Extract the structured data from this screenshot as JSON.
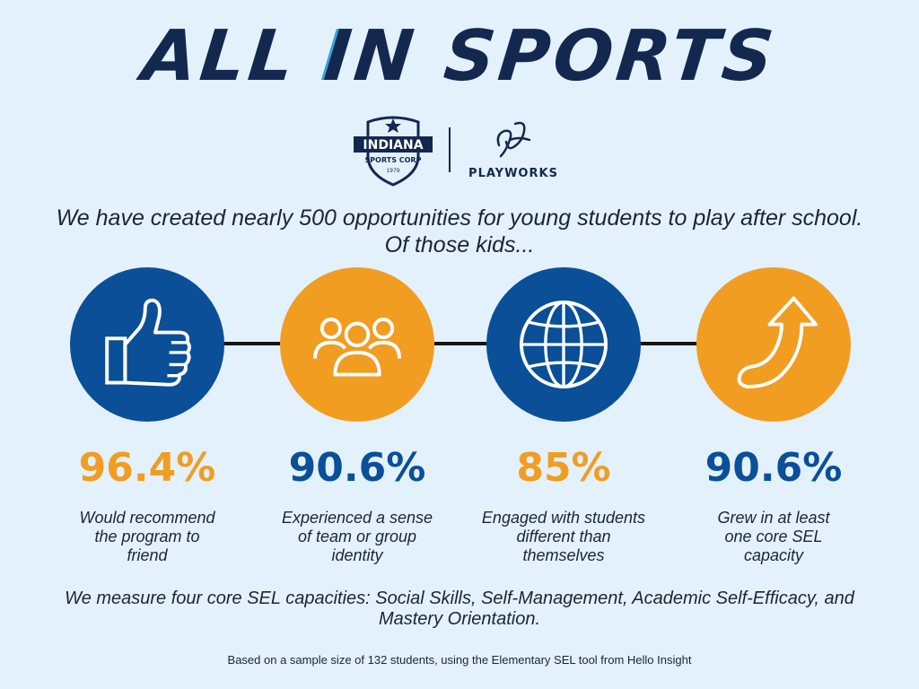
{
  "header": {
    "title_part1": "ALL ",
    "title_accent": "I",
    "title_part2": "N SPORTS"
  },
  "logos": {
    "indiana_sports_corp": {
      "line1": "INDIANA",
      "line2": "SPORTS CORP",
      "year": "1979"
    },
    "playworks": {
      "label": "PLAYWORKS"
    }
  },
  "intro": {
    "text": "We have created nearly 500 opportunities for young students to play after school. Of those kids..."
  },
  "stats": [
    {
      "icon": "thumbs-up-icon",
      "circle_color": "#0a4f98",
      "value": "96.4%",
      "value_color": "#f09d22",
      "label": "Would recommend the program to friend"
    },
    {
      "icon": "group-icon",
      "circle_color": "#f09d22",
      "value": "90.6%",
      "value_color": "#0a4f98",
      "label": "Experienced a sense of team or group identity"
    },
    {
      "icon": "globe-icon",
      "circle_color": "#0a4f98",
      "value": "85%",
      "value_color": "#f09d22",
      "label": "Engaged with students different than themselves"
    },
    {
      "icon": "arrow-up-icon",
      "circle_color": "#f09d22",
      "value": "90.6%",
      "value_color": "#0a4f98",
      "label": "Grew in at least one core SEL capacity"
    }
  ],
  "measure": {
    "text": "We measure four core SEL capacities: Social Skills, Self-Management, Academic Self-Efficacy, and Mastery Orientation."
  },
  "footnote": {
    "text": "Based on a sample size of 132 students, using the Elementary SEL tool from Hello Insight"
  },
  "colors": {
    "background": "#e3f1fc",
    "navy": "#13284f",
    "blue": "#0a4f98",
    "orange": "#f09d22"
  }
}
